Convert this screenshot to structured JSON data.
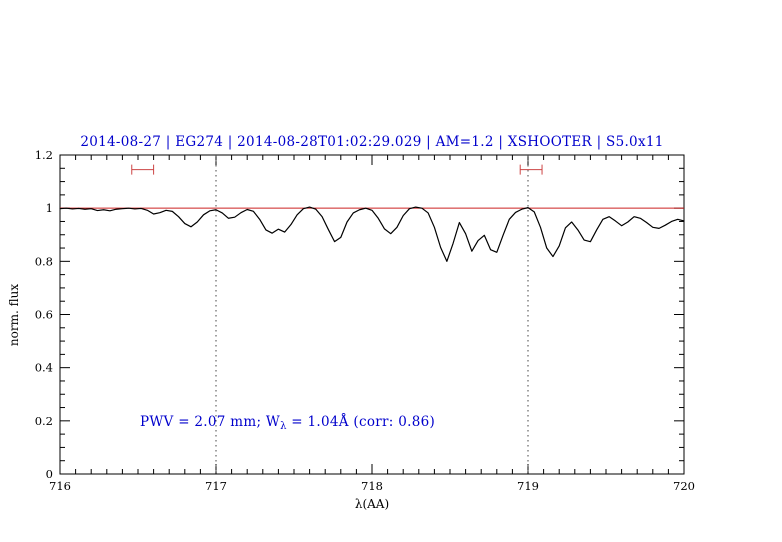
{
  "title": "2014-08-27 | EG274 | 2014-08-28T01:02:29.029 | AM=1.2 | XSHOOTER | S5.0x11",
  "annotation": {
    "prefix": "PWV = 2.07 mm; W",
    "sub": "λ",
    "suffix": " = 1.04Å (corr: 0.86)"
  },
  "colors": {
    "title": "#0000cc",
    "annotation": "#0000cc",
    "continuum": "#cc2222",
    "marker": "#cc4444",
    "spectrum": "#000000",
    "dotted": "#444444",
    "frame": "#000000"
  },
  "chart_data": {
    "type": "line",
    "title": "2014-08-27 | EG274 | 2014-08-28T01:02:29.029 | AM=1.2 | XSHOOTER | S5.0x11",
    "xlabel": "λ(AA)",
    "ylabel": "norm. flux",
    "xlim": [
      716,
      720
    ],
    "ylim": [
      0,
      1.2
    ],
    "grid": false,
    "legend": "none",
    "xticks": {
      "major": [
        716,
        717,
        718,
        719,
        720
      ],
      "labels": [
        "716",
        "717",
        "718",
        "719",
        "720"
      ],
      "minor_step": 0.1
    },
    "yticks": {
      "major": [
        0,
        0.2,
        0.4,
        0.6,
        0.8,
        1,
        1.2
      ],
      "labels": [
        "0",
        "0.2",
        "0.4",
        "0.6",
        "0.8",
        "1",
        "1.2"
      ],
      "minor_step": 0.05
    },
    "vlines": [
      717,
      719
    ],
    "continuum_y": 1.0,
    "markers": [
      {
        "x1": 716.46,
        "x2": 716.6,
        "y": 1.145
      },
      {
        "x1": 718.95,
        "x2": 719.09,
        "y": 1.145
      }
    ],
    "series": [
      {
        "name": "spectrum",
        "points": [
          [
            716.0,
            0.998
          ],
          [
            716.04,
            1.0
          ],
          [
            716.08,
            0.997
          ],
          [
            716.12,
            0.999
          ],
          [
            716.16,
            0.996
          ],
          [
            716.2,
            0.998
          ],
          [
            716.24,
            0.991
          ],
          [
            716.28,
            0.994
          ],
          [
            716.32,
            0.99
          ],
          [
            716.36,
            0.996
          ],
          [
            716.4,
            0.998
          ],
          [
            716.44,
            1.0
          ],
          [
            716.48,
            0.997
          ],
          [
            716.52,
            0.999
          ],
          [
            716.56,
            0.992
          ],
          [
            716.6,
            0.978
          ],
          [
            716.64,
            0.983
          ],
          [
            716.68,
            0.992
          ],
          [
            716.72,
            0.988
          ],
          [
            716.76,
            0.968
          ],
          [
            716.8,
            0.942
          ],
          [
            716.84,
            0.93
          ],
          [
            716.88,
            0.948
          ],
          [
            716.92,
            0.975
          ],
          [
            716.96,
            0.99
          ],
          [
            717.0,
            0.994
          ],
          [
            717.04,
            0.982
          ],
          [
            717.08,
            0.962
          ],
          [
            717.12,
            0.966
          ],
          [
            717.16,
            0.983
          ],
          [
            717.2,
            0.995
          ],
          [
            717.24,
            0.988
          ],
          [
            717.28,
            0.958
          ],
          [
            717.32,
            0.918
          ],
          [
            717.36,
            0.906
          ],
          [
            717.4,
            0.921
          ],
          [
            717.44,
            0.91
          ],
          [
            717.48,
            0.938
          ],
          [
            717.52,
            0.975
          ],
          [
            717.56,
            0.998
          ],
          [
            717.6,
            1.004
          ],
          [
            717.64,
            0.996
          ],
          [
            717.68,
            0.968
          ],
          [
            717.72,
            0.92
          ],
          [
            717.76,
            0.874
          ],
          [
            717.8,
            0.89
          ],
          [
            717.84,
            0.948
          ],
          [
            717.88,
            0.982
          ],
          [
            717.92,
            0.994
          ],
          [
            717.96,
            1.0
          ],
          [
            718.0,
            0.992
          ],
          [
            718.04,
            0.962
          ],
          [
            718.08,
            0.922
          ],
          [
            718.12,
            0.904
          ],
          [
            718.16,
            0.928
          ],
          [
            718.2,
            0.972
          ],
          [
            718.24,
            0.998
          ],
          [
            718.28,
            1.004
          ],
          [
            718.32,
            1.0
          ],
          [
            718.36,
            0.982
          ],
          [
            718.4,
            0.928
          ],
          [
            718.44,
            0.852
          ],
          [
            718.48,
            0.8
          ],
          [
            718.52,
            0.868
          ],
          [
            718.56,
            0.946
          ],
          [
            718.6,
            0.904
          ],
          [
            718.64,
            0.838
          ],
          [
            718.68,
            0.878
          ],
          [
            718.72,
            0.898
          ],
          [
            718.76,
            0.844
          ],
          [
            718.8,
            0.834
          ],
          [
            718.84,
            0.898
          ],
          [
            718.88,
            0.958
          ],
          [
            718.92,
            0.984
          ],
          [
            718.96,
            0.996
          ],
          [
            719.0,
            1.002
          ],
          [
            719.04,
            0.986
          ],
          [
            719.08,
            0.928
          ],
          [
            719.12,
            0.85
          ],
          [
            719.16,
            0.818
          ],
          [
            719.2,
            0.858
          ],
          [
            719.24,
            0.926
          ],
          [
            719.28,
            0.948
          ],
          [
            719.32,
            0.918
          ],
          [
            719.36,
            0.88
          ],
          [
            719.4,
            0.874
          ],
          [
            719.44,
            0.918
          ],
          [
            719.48,
            0.958
          ],
          [
            719.52,
            0.968
          ],
          [
            719.56,
            0.952
          ],
          [
            719.6,
            0.934
          ],
          [
            719.64,
            0.948
          ],
          [
            719.68,
            0.968
          ],
          [
            719.72,
            0.962
          ],
          [
            719.76,
            0.946
          ],
          [
            719.8,
            0.928
          ],
          [
            719.84,
            0.924
          ],
          [
            719.88,
            0.936
          ],
          [
            719.92,
            0.95
          ],
          [
            719.96,
            0.958
          ],
          [
            720.0,
            0.952
          ]
        ]
      }
    ]
  }
}
